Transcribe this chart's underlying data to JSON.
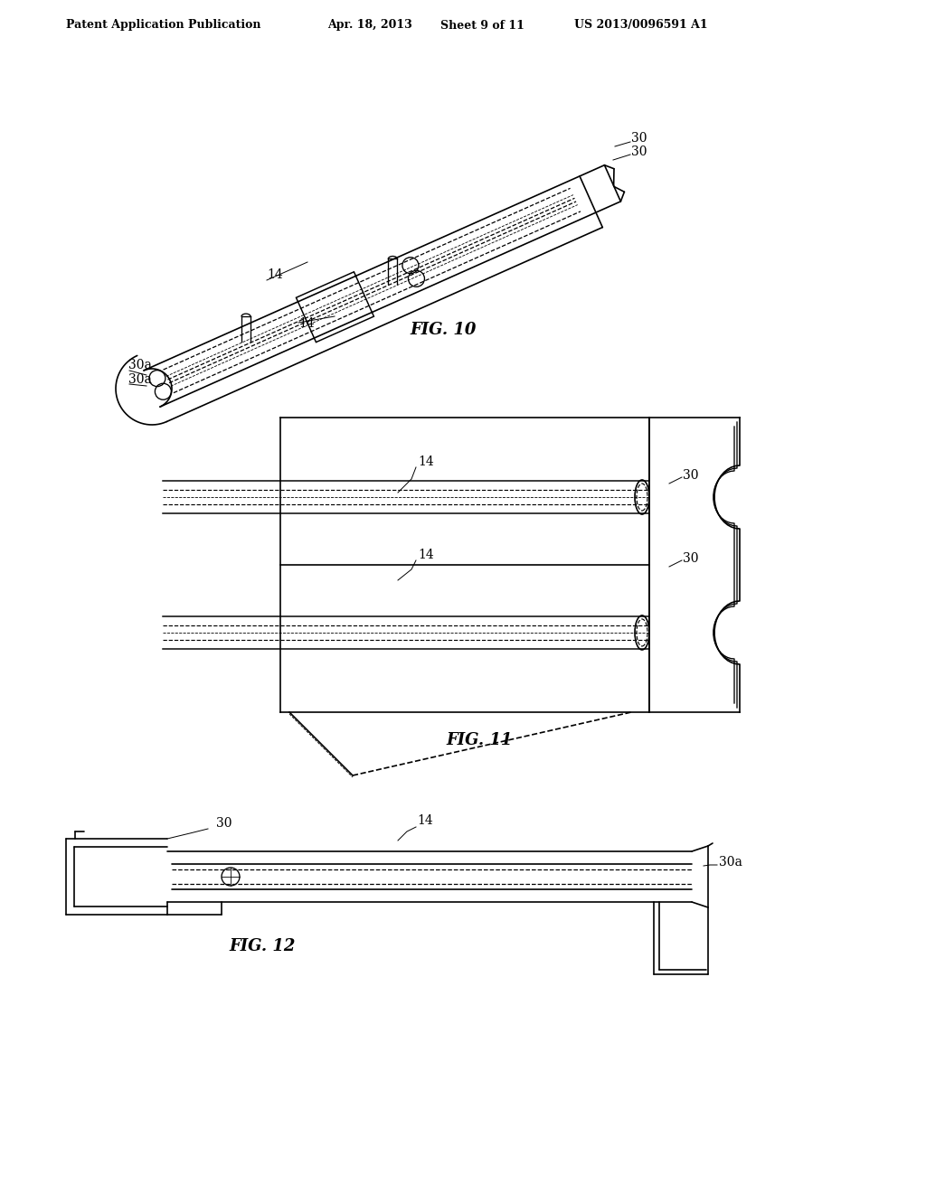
{
  "bg_color": "#ffffff",
  "header_text": "Patent Application Publication",
  "header_date": "Apr. 18, 2013",
  "header_sheet": "Sheet 9 of 11",
  "header_patent": "US 2013/0096591 A1",
  "fig10_label": "FIG. 10",
  "fig11_label": "FIG. 11",
  "fig12_label": "FIG. 12",
  "line_color": "#000000",
  "line_width": 1.2,
  "label_fontsize": 10,
  "fig_label_fontsize": 12
}
